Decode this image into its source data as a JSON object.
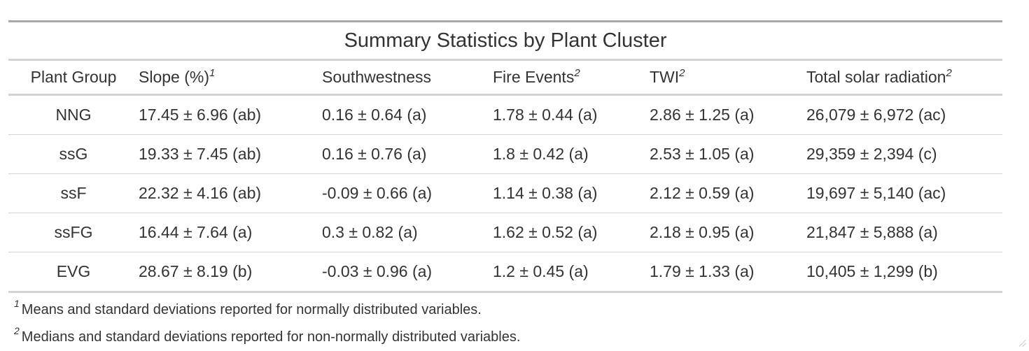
{
  "table": {
    "title": "Summary Statistics by Plant Cluster",
    "columns": [
      {
        "label": "Plant Group",
        "mark": ""
      },
      {
        "label": "Slope (%)",
        "mark": "1"
      },
      {
        "label": "Southwestness",
        "mark": ""
      },
      {
        "label": "Fire Events",
        "mark": "2"
      },
      {
        "label": "TWI",
        "mark": "2"
      },
      {
        "label": "Total solar radiation",
        "mark": "2"
      }
    ],
    "rows": [
      [
        "NNG",
        "17.45 ± 6.96 (ab)",
        "0.16 ± 0.64 (a)",
        "1.78 ± 0.44 (a)",
        "2.86 ± 1.25 (a)",
        "26,079 ± 6,972 (ac)"
      ],
      [
        "ssG",
        "19.33 ± 7.45 (ab)",
        "0.16 ± 0.76 (a)",
        "1.8 ± 0.42 (a)",
        "2.53 ± 1.05 (a)",
        "29,359 ± 2,394 (c)"
      ],
      [
        "ssF",
        "22.32 ± 4.16 (ab)",
        "-0.09 ± 0.66 (a)",
        "1.14 ± 0.38 (a)",
        "2.12 ± 0.59 (a)",
        "19,697 ± 5,140 (ac)"
      ],
      [
        "ssFG",
        "16.44 ± 7.64 (a)",
        "0.3 ± 0.82 (a)",
        "1.62 ± 0.52 (a)",
        "2.18 ± 0.95 (a)",
        "21,847 ± 5,888 (a)"
      ],
      [
        "EVG",
        "28.67 ± 8.19 (b)",
        "-0.03 ± 0.96 (a)",
        "1.2 ± 0.45 (a)",
        "1.79 ± 1.33 (a)",
        "10,405 ± 1,299 (b)"
      ]
    ]
  },
  "footnotes": [
    {
      "mark": "1",
      "text": "Means and standard deviations reported for normally distributed variables."
    },
    {
      "mark": "2",
      "text": "Medians and standard deviations reported for non-normally distributed variables."
    }
  ]
}
